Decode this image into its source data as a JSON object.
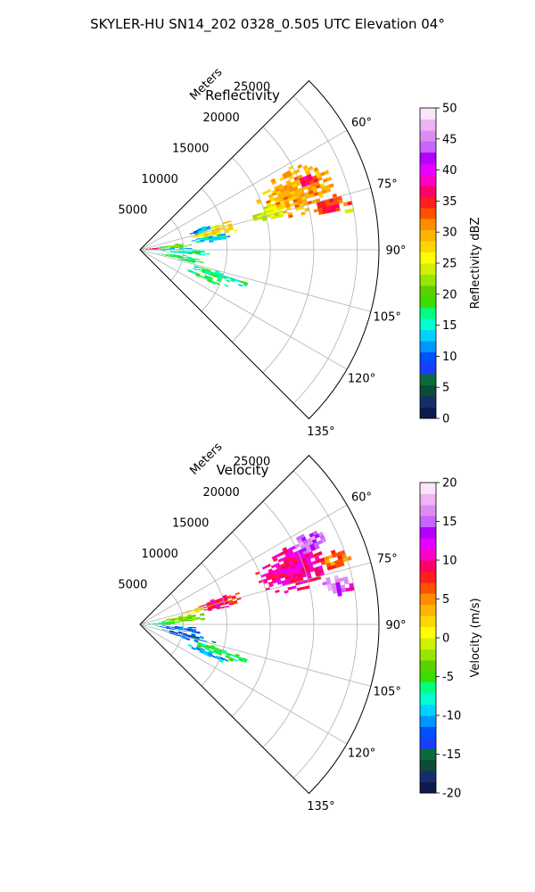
{
  "figure_title": "SKYLER-HU  SN14_202  0328_0.505 UTC Elevation 04°",
  "chart_data": [
    {
      "type": "heatmap",
      "projection": "polar-sector",
      "title": "Reflectivity",
      "range_label": "Meters",
      "range_ticks": [
        5000,
        10000,
        15000,
        20000,
        25000
      ],
      "range_tick_labels": [
        "5000",
        "10000",
        "15000",
        "20000",
        "25000"
      ],
      "azimuth_range_deg": [
        45,
        135
      ],
      "azimuth_ticks": [
        60,
        75,
        90,
        105,
        120,
        135
      ],
      "azimuth_tick_labels": [
        "60°",
        "75°",
        "90°",
        "105°",
        "120°",
        "135°"
      ],
      "grid": true,
      "colorbar": {
        "label": "Reflectivity dBZ",
        "range": [
          0,
          50
        ],
        "ticks": [
          0,
          5,
          10,
          15,
          20,
          25,
          30,
          35,
          40,
          45,
          50
        ],
        "tick_labels": [
          "0",
          "5",
          "10",
          "15",
          "20",
          "25",
          "30",
          "35",
          "40",
          "45",
          "50"
        ],
        "colors": [
          "#0d1a4d",
          "#152e6b",
          "#0d4a38",
          "#0b6b3a",
          "#1a3dff",
          "#0050ff",
          "#0096ff",
          "#00d2ff",
          "#00ffd0",
          "#00ff80",
          "#3cdc00",
          "#5ad200",
          "#96e600",
          "#d2f000",
          "#ffff00",
          "#ffd700",
          "#ffb400",
          "#ff8c00",
          "#ff5000",
          "#ff1e1e",
          "#ff0064",
          "#ff00c8",
          "#e600ff",
          "#b400ff",
          "#c864ff",
          "#dc8cf0",
          "#eeb4f5",
          "#fae6fa"
        ]
      },
      "blobs": [
        {
          "az": 70,
          "r": 19000,
          "ar": 9,
          "rr": 5000,
          "v": 30
        },
        {
          "az": 68,
          "r": 20500,
          "ar": 4,
          "rr": 2500,
          "v": 36
        },
        {
          "az": 77,
          "r": 22500,
          "ar": 3,
          "rr": 2500,
          "v": 34
        },
        {
          "az": 74,
          "r": 15500,
          "ar": 4,
          "rr": 2500,
          "v": 24
        },
        {
          "az": 76,
          "r": 9000,
          "ar": 5,
          "rr": 3000,
          "v": 27
        },
        {
          "az": 73,
          "r": 7500,
          "ar": 3,
          "rr": 1500,
          "v": 12
        },
        {
          "az": 81,
          "r": 8500,
          "ar": 3,
          "rr": 2500,
          "v": 14
        },
        {
          "az": 84,
          "r": 3500,
          "ar": 4,
          "rr": 2500,
          "v": 22
        },
        {
          "az": 85,
          "r": 1500,
          "ar": 5,
          "rr": 1500,
          "v": 36
        },
        {
          "az": 89,
          "r": 3000,
          "ar": 3,
          "rr": 3000,
          "v": 14
        },
        {
          "az": 93,
          "r": 5500,
          "ar": 3,
          "rr": 3000,
          "v": 16
        },
        {
          "az": 101,
          "r": 4500,
          "ar": 4,
          "rr": 3000,
          "v": 18
        },
        {
          "az": 108,
          "r": 9500,
          "ar": 3,
          "rr": 4000,
          "v": 16
        },
        {
          "az": 113,
          "r": 8500,
          "ar": 2,
          "rr": 3000,
          "v": 17
        },
        {
          "az": 80,
          "r": 24500,
          "ar": 1.5,
          "rr": 800,
          "v": 22
        }
      ]
    },
    {
      "type": "heatmap",
      "projection": "polar-sector",
      "title": "Velocity",
      "range_label": "Meters",
      "range_ticks": [
        5000,
        10000,
        15000,
        20000,
        25000
      ],
      "range_tick_labels": [
        "5000",
        "10000",
        "15000",
        "20000",
        "25000"
      ],
      "azimuth_range_deg": [
        45,
        135
      ],
      "azimuth_ticks": [
        60,
        75,
        90,
        105,
        120,
        135
      ],
      "azimuth_tick_labels": [
        "60°",
        "75°",
        "90°",
        "105°",
        "120°",
        "135°"
      ],
      "grid": true,
      "colorbar": {
        "label": "Velocity (m/s)",
        "range": [
          -20,
          20
        ],
        "ticks": [
          -20,
          -15,
          -10,
          -5,
          0,
          5,
          10,
          15,
          20
        ],
        "tick_labels": [
          "-20",
          "-15",
          "-10",
          "-5",
          "0",
          "5",
          "10",
          "15",
          "20"
        ],
        "colors": [
          "#0d1a4d",
          "#152e6b",
          "#0d4a38",
          "#0b6b3a",
          "#1a3dff",
          "#0050ff",
          "#0096ff",
          "#00d2ff",
          "#00ffd0",
          "#00ff80",
          "#3cdc00",
          "#5ad200",
          "#96e600",
          "#d2f000",
          "#ffff00",
          "#ffd700",
          "#ffb400",
          "#ff8c00",
          "#ff5000",
          "#ff1e1e",
          "#ff0064",
          "#ff00c8",
          "#e600ff",
          "#b400ff",
          "#c864ff",
          "#dc8cf0",
          "#eeb4f5",
          "#fae6fa"
        ]
      },
      "blobs": [
        {
          "az": 70,
          "r": 19000,
          "ar": 9,
          "rr": 5000,
          "v": 10
        },
        {
          "az": 65,
          "r": 21500,
          "ar": 4,
          "rr": 2500,
          "v": 15
        },
        {
          "az": 79,
          "r": 23000,
          "ar": 3,
          "rr": 2000,
          "v": 16
        },
        {
          "az": 72,
          "r": 23500,
          "ar": 3,
          "rr": 2000,
          "v": 6
        },
        {
          "az": 75,
          "r": 9500,
          "ar": 5,
          "rr": 3000,
          "v": 8
        },
        {
          "az": 76,
          "r": 6500,
          "ar": 3,
          "rr": 1500,
          "v": 2
        },
        {
          "az": 83,
          "r": 5000,
          "ar": 5,
          "rr": 3000,
          "v": -3
        },
        {
          "az": 88,
          "r": 2500,
          "ar": 5,
          "rr": 2500,
          "v": -6
        },
        {
          "az": 96,
          "r": 4500,
          "ar": 4,
          "rr": 3000,
          "v": -12
        },
        {
          "az": 104,
          "r": 5500,
          "ar": 4,
          "rr": 3500,
          "v": -13
        },
        {
          "az": 109,
          "r": 9500,
          "ar": 3,
          "rr": 4000,
          "v": -6
        },
        {
          "az": 113,
          "r": 8500,
          "ar": 2,
          "rr": 3000,
          "v": -10
        },
        {
          "az": 80,
          "r": 24500,
          "ar": 1.5,
          "rr": 800,
          "v": 11
        }
      ]
    }
  ]
}
